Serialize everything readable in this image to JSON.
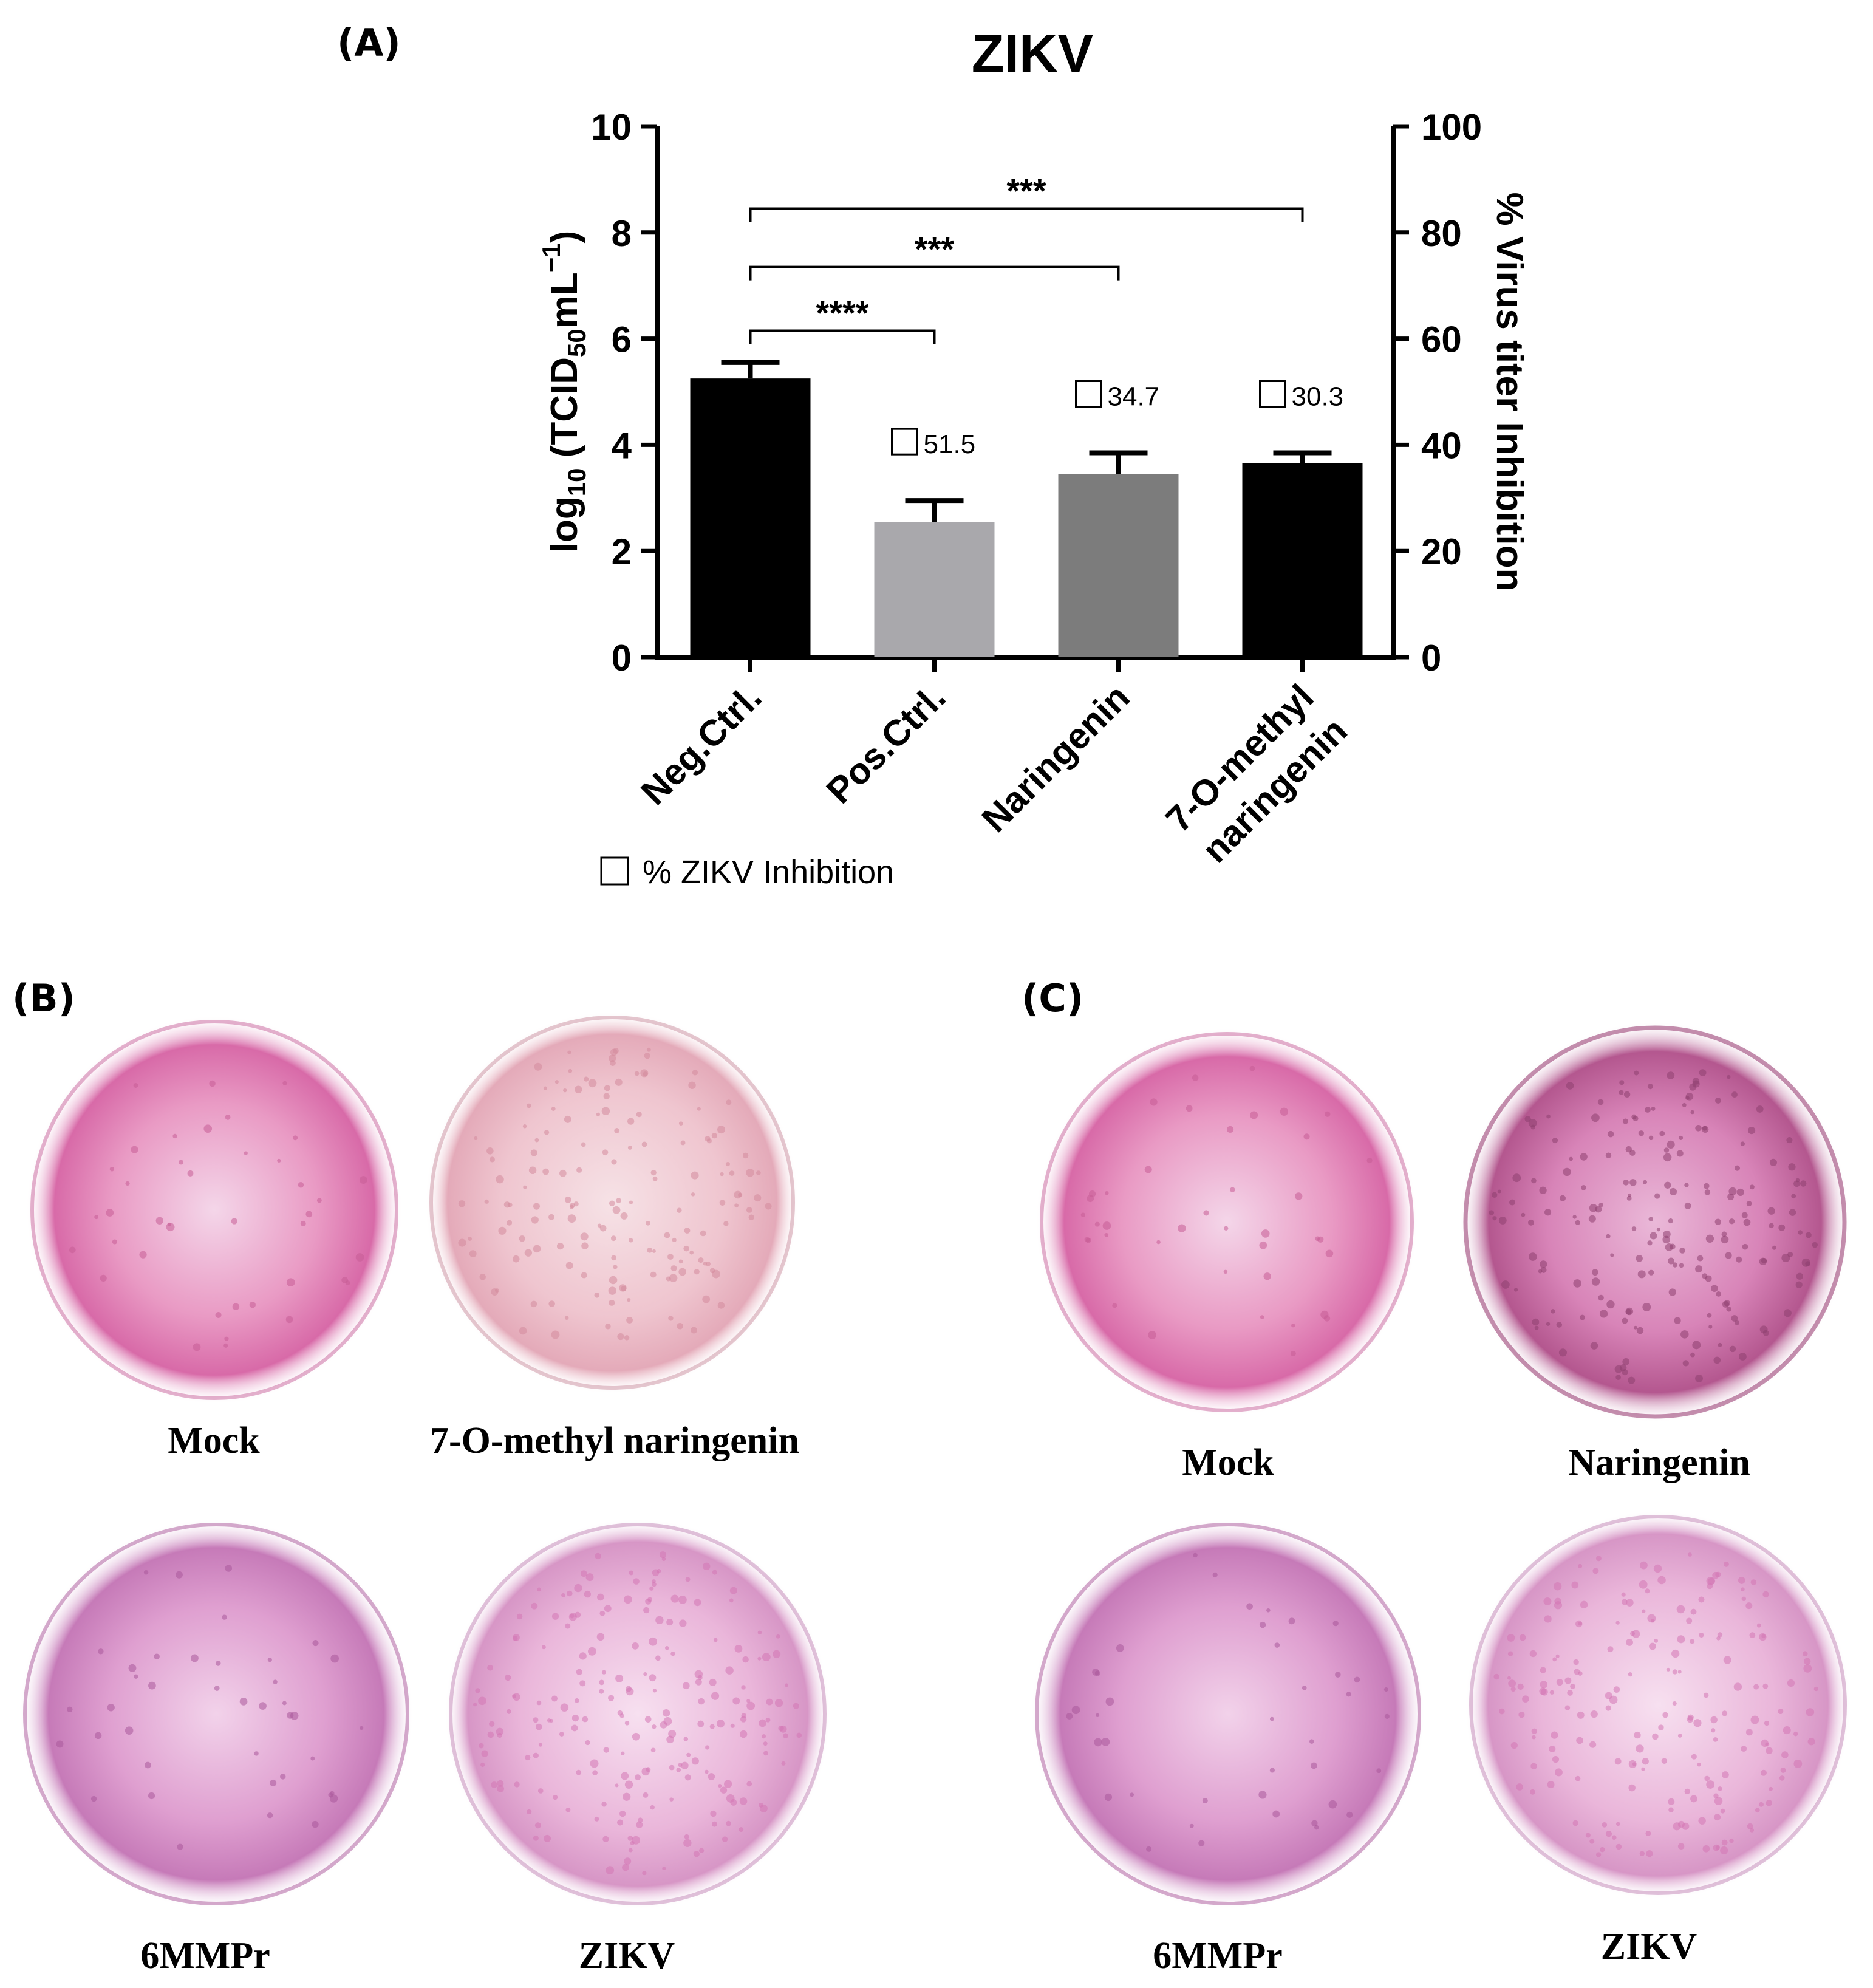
{
  "panels": {
    "a": "(A)",
    "b": "(B)",
    "c": "(C)"
  },
  "chart_data": {
    "type": "bar",
    "title": "ZIKV",
    "ylabel_left": {
      "base": "log",
      "sub1": "10",
      "open": " (TCID",
      "sub2": "50",
      "unit": "mL",
      "sup": "−1",
      "close": ")"
    },
    "ylabel_right": "% Virus titer Inhibition",
    "ylim_left": [
      0,
      10
    ],
    "ylim_right": [
      0,
      100
    ],
    "yticks_left": [
      "0",
      "2",
      "4",
      "6",
      "8",
      "10"
    ],
    "yticks_right": [
      "0",
      "20",
      "40",
      "60",
      "80",
      "100"
    ],
    "categories": [
      {
        "lines": [
          "Neg.Ctrl."
        ]
      },
      {
        "lines": [
          "Pos.Ctrl."
        ]
      },
      {
        "lines": [
          "Naringenin"
        ]
      },
      {
        "lines": [
          "7-O-methyl",
          "naringenin"
        ]
      }
    ],
    "values": [
      5.25,
      2.55,
      3.45,
      3.65
    ],
    "errors": [
      0.3,
      0.4,
      0.4,
      0.2
    ],
    "bar_colors": [
      "#000000",
      "#a9a8ac",
      "#7c7c7c",
      "#000000"
    ],
    "inhibition_labels": [
      "",
      "51.5",
      "34.7",
      "30.3"
    ],
    "significance": [
      {
        "from": 0,
        "to": 1,
        "label": "****",
        "y": 6.15
      },
      {
        "from": 0,
        "to": 2,
        "label": "***",
        "y": 7.35
      },
      {
        "from": 0,
        "to": 3,
        "label": "***",
        "y": 8.45
      }
    ],
    "legend": "% ZIKV Inhibition",
    "grid": false
  },
  "micrographs": {
    "b": [
      "Mock",
      "7-O-methyl naringenin",
      "6MMPr",
      "ZIKV"
    ],
    "c": [
      "Mock",
      "Naringenin",
      "6MMPr",
      "ZIKV"
    ]
  }
}
